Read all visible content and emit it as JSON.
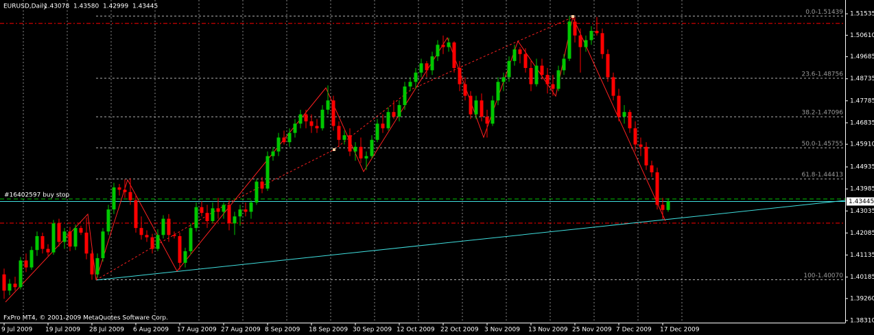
{
  "chart_data": {
    "type": "candlestick",
    "header": {
      "symbol": "EURUSD,Daily",
      "ohlc": [
        "1.43078",
        "1.43580",
        "1.42999",
        "1.43445"
      ]
    },
    "footer": "FxPro MT4, © 2001-2009 MetaQuotes Software Corp.",
    "up_color": "#00c800",
    "down_color": "#ff0000",
    "grid": true,
    "ylim": [
      1.3822,
      1.5213
    ],
    "yticks": [
      {
        "value": 1.51535,
        "label": "1.51535"
      },
      {
        "value": 1.5061,
        "label": "1.50610"
      },
      {
        "value": 1.49685,
        "label": "1.49685"
      },
      {
        "value": 1.48735,
        "label": "1.48735"
      },
      {
        "value": 1.47785,
        "label": "1.47785"
      },
      {
        "value": 1.46835,
        "label": "1.46835"
      },
      {
        "value": 1.4591,
        "label": "1.45910"
      },
      {
        "value": 1.44935,
        "label": "1.44935"
      },
      {
        "value": 1.43985,
        "label": "1.43985"
      },
      {
        "value": 1.43035,
        "label": "1.43035"
      },
      {
        "value": 1.42085,
        "label": "1.42085"
      },
      {
        "value": 1.41135,
        "label": "1.41135"
      },
      {
        "value": 1.40185,
        "label": "1.40185"
      },
      {
        "value": 1.3926,
        "label": "1.39260"
      },
      {
        "value": 1.3831,
        "label": "1.38310"
      }
    ],
    "bid": 1.43445,
    "bid_color": "#40e0e0",
    "fib_levels": [
      {
        "value": 1.51439,
        "label": "0.0-1.51439"
      },
      {
        "value": 1.48756,
        "label": "23.6-1.48756"
      },
      {
        "value": 1.47096,
        "label": "38.2-1.47096"
      },
      {
        "value": 1.45755,
        "label": "50.0-1.45755"
      },
      {
        "value": 1.44413,
        "label": "61.8-1.44413"
      },
      {
        "value": 1.4007,
        "label": "100-1.40070"
      }
    ],
    "order_line": {
      "value": 1.4355,
      "label": "#16402597 buy stop",
      "color": "#00c000"
    },
    "stop_lines": [
      {
        "value": 1.5112,
        "color": "#ff0000"
      },
      {
        "value": 1.4251,
        "color": "#ff0000"
      }
    ],
    "categories": [
      "9 Jul 2009",
      null,
      null,
      null,
      null,
      null,
      null,
      null,
      "19 Jul 2009",
      null,
      null,
      null,
      null,
      null,
      null,
      null,
      "28 Jul 2009",
      null,
      null,
      null,
      null,
      null,
      null,
      null,
      "6 Aug 2009",
      null,
      null,
      null,
      null,
      null,
      null,
      null,
      "17 Aug 2009",
      null,
      null,
      null,
      null,
      null,
      null,
      null,
      "27 Aug 2009",
      null,
      null,
      null,
      null,
      null,
      null,
      null,
      "8 Sep 2009",
      null,
      null,
      null,
      null,
      null,
      null,
      null,
      "18 Sep 2009",
      null,
      null,
      null,
      null,
      null,
      null,
      null,
      "30 Sep 2009",
      null,
      null,
      null,
      null,
      null,
      null,
      null,
      "12 Oct 2009",
      null,
      null,
      null,
      null,
      null,
      null,
      null,
      "22 Oct 2009",
      null,
      null,
      null,
      null,
      null,
      null,
      null,
      "3 Nov 2009",
      null,
      null,
      null,
      null,
      null,
      null,
      null,
      "13 Nov 2009",
      null,
      null,
      null,
      null,
      null,
      null,
      null,
      "25 Nov 2009",
      null,
      null,
      null,
      null,
      null,
      null,
      null,
      "7 Dec 2009",
      null,
      null,
      null,
      null,
      null,
      null,
      null,
      "17 Dec 2009",
      null
    ],
    "open": [
      1.403,
      1.396,
      1.399,
      1.3975,
      1.409,
      1.406,
      1.4135,
      1.4195,
      1.414,
      1.4125,
      1.425,
      1.417,
      1.4215,
      1.415,
      1.423,
      1.421,
      1.412,
      1.403,
      1.41,
      1.4215,
      1.431,
      1.4405,
      1.4395,
      1.4385,
      1.435,
      1.423,
      1.42,
      1.419,
      1.414,
      1.42,
      1.427,
      1.42,
      1.4195,
      1.408,
      1.413,
      1.423,
      1.432,
      1.4295,
      1.426,
      1.4315,
      1.43,
      1.433,
      1.425,
      1.428,
      1.431,
      1.43,
      1.434,
      1.443,
      1.44,
      1.454,
      1.456,
      1.462,
      1.46,
      1.464,
      1.468,
      1.472,
      1.469,
      1.467,
      1.466,
      1.474,
      1.478,
      1.467,
      1.461,
      1.463,
      1.456,
      1.458,
      1.453,
      1.454,
      1.461,
      1.468,
      1.466,
      1.473,
      1.471,
      1.476,
      1.484,
      1.486,
      1.49,
      1.494,
      1.491,
      1.497,
      1.502,
      1.501,
      1.503,
      1.492,
      1.485,
      1.48,
      1.472,
      1.478,
      1.471,
      1.468,
      1.478,
      1.486,
      1.488,
      1.495,
      1.5,
      1.498,
      1.492,
      1.485,
      1.493,
      1.489,
      1.485,
      1.483,
      1.491,
      1.496,
      1.512,
      1.506,
      1.501,
      1.504,
      1.508,
      1.507,
      1.498,
      1.488,
      1.48,
      1.471,
      1.473,
      1.466,
      1.459,
      1.458,
      1.45,
      1.447,
      1.433,
      1.43078
    ],
    "high": [
      1.4055,
      1.401,
      1.402,
      1.4105,
      1.412,
      1.415,
      1.4215,
      1.421,
      1.416,
      1.4265,
      1.427,
      1.423,
      1.4235,
      1.4245,
      1.424,
      1.4275,
      1.4135,
      1.412,
      1.423,
      1.433,
      1.4425,
      1.442,
      1.444,
      1.4445,
      1.4375,
      1.428,
      1.422,
      1.4205,
      1.4225,
      1.4285,
      1.429,
      1.4215,
      1.421,
      1.4145,
      1.425,
      1.434,
      1.4345,
      1.433,
      1.434,
      1.436,
      1.434,
      1.435,
      1.43,
      1.433,
      1.434,
      1.435,
      1.444,
      1.445,
      1.456,
      1.458,
      1.464,
      1.465,
      1.466,
      1.47,
      1.474,
      1.474,
      1.472,
      1.47,
      1.476,
      1.4845,
      1.48,
      1.469,
      1.465,
      1.466,
      1.46,
      1.462,
      1.456,
      1.463,
      1.47,
      1.472,
      1.475,
      1.478,
      1.478,
      1.486,
      1.488,
      1.492,
      1.496,
      1.495,
      1.499,
      1.504,
      1.506,
      1.505,
      1.5035,
      1.495,
      1.488,
      1.482,
      1.48,
      1.481,
      1.474,
      1.48,
      1.488,
      1.49,
      1.497,
      1.502,
      1.501,
      1.5005,
      1.495,
      1.496,
      1.496,
      1.492,
      1.489,
      1.493,
      1.498,
      1.5144,
      1.514,
      1.509,
      1.506,
      1.51,
      1.514,
      1.509,
      1.5,
      1.49,
      1.483,
      1.476,
      1.474,
      1.469,
      1.462,
      1.46,
      1.452,
      1.449,
      1.436,
      1.4358
    ],
    "low": [
      1.3925,
      1.394,
      1.396,
      1.3965,
      1.404,
      1.405,
      1.411,
      1.412,
      1.411,
      1.4115,
      1.415,
      1.414,
      1.413,
      1.4135,
      1.42,
      1.4095,
      1.4007,
      1.4015,
      1.4085,
      1.42,
      1.429,
      1.437,
      1.436,
      1.433,
      1.421,
      1.418,
      1.417,
      1.412,
      1.413,
      1.4185,
      1.417,
      1.4185,
      1.405,
      1.406,
      1.4115,
      1.4215,
      1.428,
      1.423,
      1.425,
      1.427,
      1.427,
      1.422,
      1.42,
      1.424,
      1.428,
      1.427,
      1.433,
      1.438,
      1.439,
      1.452,
      1.454,
      1.459,
      1.458,
      1.462,
      1.466,
      1.466,
      1.464,
      1.464,
      1.465,
      1.472,
      1.465,
      1.458,
      1.459,
      1.454,
      1.452,
      1.451,
      1.448,
      1.453,
      1.46,
      1.464,
      1.465,
      1.47,
      1.469,
      1.474,
      1.482,
      1.483,
      1.488,
      1.488,
      1.489,
      1.495,
      1.498,
      1.499,
      1.49,
      1.482,
      1.478,
      1.47,
      1.47,
      1.469,
      1.462,
      1.467,
      1.476,
      1.482,
      1.486,
      1.493,
      1.494,
      1.49,
      1.482,
      1.484,
      1.487,
      1.481,
      1.48,
      1.482,
      1.489,
      1.495,
      1.503,
      1.49,
      1.499,
      1.502,
      1.506,
      1.496,
      1.486,
      1.478,
      1.469,
      1.468,
      1.464,
      1.456,
      1.454,
      1.448,
      1.445,
      1.431,
      1.4268,
      1.42999
    ],
    "close": [
      1.396,
      1.399,
      1.3975,
      1.409,
      1.406,
      1.4135,
      1.4195,
      1.414,
      1.4125,
      1.425,
      1.417,
      1.4215,
      1.415,
      1.423,
      1.421,
      1.412,
      1.403,
      1.41,
      1.4215,
      1.431,
      1.4405,
      1.4395,
      1.4385,
      1.435,
      1.423,
      1.42,
      1.419,
      1.414,
      1.42,
      1.427,
      1.42,
      1.4195,
      1.408,
      1.413,
      1.423,
      1.432,
      1.4295,
      1.426,
      1.4315,
      1.43,
      1.433,
      1.425,
      1.428,
      1.431,
      1.43,
      1.434,
      1.443,
      1.44,
      1.454,
      1.456,
      1.462,
      1.46,
      1.464,
      1.468,
      1.472,
      1.469,
      1.467,
      1.466,
      1.474,
      1.478,
      1.467,
      1.461,
      1.463,
      1.456,
      1.458,
      1.453,
      1.454,
      1.461,
      1.468,
      1.466,
      1.473,
      1.471,
      1.476,
      1.484,
      1.486,
      1.49,
      1.494,
      1.491,
      1.497,
      1.502,
      1.501,
      1.503,
      1.492,
      1.485,
      1.48,
      1.472,
      1.478,
      1.471,
      1.468,
      1.478,
      1.486,
      1.488,
      1.495,
      1.5,
      1.498,
      1.492,
      1.485,
      1.493,
      1.489,
      1.485,
      1.483,
      1.491,
      1.496,
      1.512,
      1.506,
      1.501,
      1.504,
      1.508,
      1.507,
      1.498,
      1.488,
      1.48,
      1.471,
      1.473,
      1.466,
      1.459,
      1.458,
      1.45,
      1.447,
      1.433,
      1.4308,
      1.43445
    ]
  }
}
